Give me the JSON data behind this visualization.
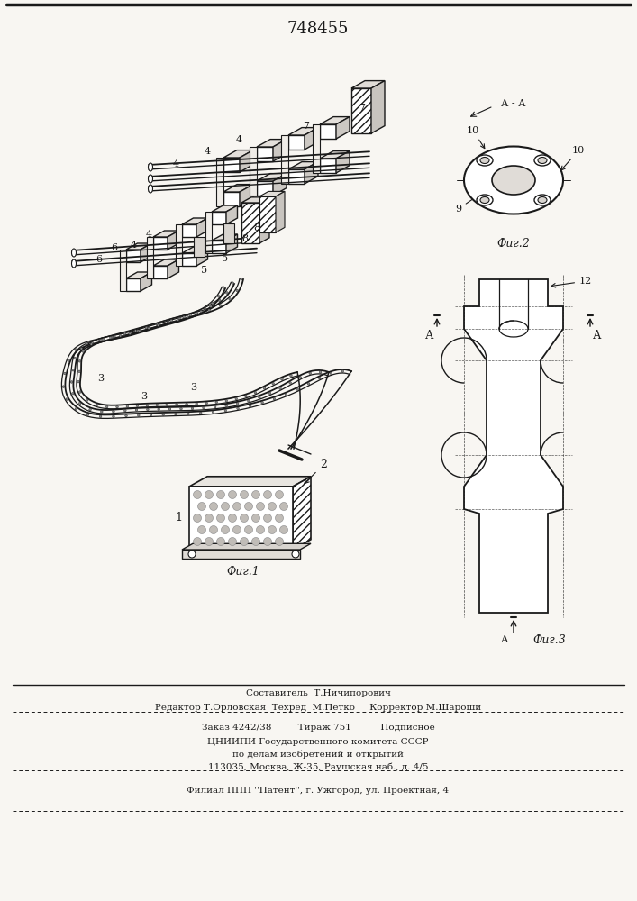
{
  "patent_number": "748455",
  "background_color": "#f8f6f2",
  "line_color": "#1a1a1a",
  "fig_labels": {
    "fig1": "Фиг.1",
    "fig2": "Фиг.2",
    "fig3": "Фиг.3"
  },
  "bottom_texts": [
    "Составитель  Т.Ничипорович",
    "Редактор Т.Орловская  Техред  М.Петко     Корректор М.Шароши",
    "Заказ 4242/38         Тираж 751          Подписное",
    "ЦНИИПИ Государственного комитета СССР",
    "по делам изобретений и открытий",
    "113035, Москва, Ж-35, Раушская наб., д. 4/5",
    "Филиал ППП ''Патент'', г. Ужгород, ул. Проектная, 4"
  ]
}
